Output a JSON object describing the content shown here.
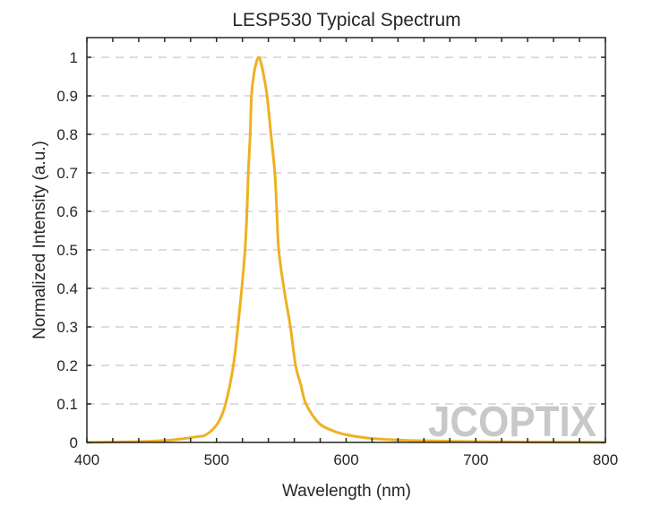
{
  "chart_data": {
    "type": "line",
    "title": "LESP530 Typical Spectrum",
    "xlabel": "Wavelength (nm)",
    "ylabel": "Normalized Intensity (a.u.)",
    "xlim": [
      400,
      800
    ],
    "ylim": [
      0,
      1
    ],
    "xticks": [
      400,
      500,
      600,
      700,
      800
    ],
    "yticks": [
      0,
      0.1,
      0.2,
      0.3,
      0.4,
      0.5,
      0.6,
      0.7,
      0.8,
      0.9,
      1
    ],
    "grid": "horizontal dashed",
    "line_color": "#EDB120",
    "watermark": "JCOPTIX",
    "series": [
      {
        "x": [
          400,
          440,
          460,
          475,
          485,
          492,
          501,
          507,
          513,
          516.5,
          519.5,
          522,
          523.5,
          524.5,
          526,
          527,
          529,
          531,
          532.6,
          534,
          536,
          539,
          542,
          545,
          546.5,
          548,
          552,
          557,
          561,
          565,
          569,
          579,
          590,
          600,
          615,
          630,
          650,
          700,
          750,
          800
        ],
        "y": [
          0,
          0.002,
          0.005,
          0.01,
          0.015,
          0.02,
          0.05,
          0.1,
          0.2,
          0.3,
          0.4,
          0.5,
          0.6,
          0.7,
          0.8,
          0.9,
          0.96,
          0.99,
          1,
          0.99,
          0.96,
          0.9,
          0.8,
          0.7,
          0.6,
          0.5,
          0.4,
          0.3,
          0.2,
          0.15,
          0.1,
          0.05,
          0.03,
          0.02,
          0.012,
          0.008,
          0.005,
          0.002,
          0.001,
          0
        ]
      }
    ]
  }
}
